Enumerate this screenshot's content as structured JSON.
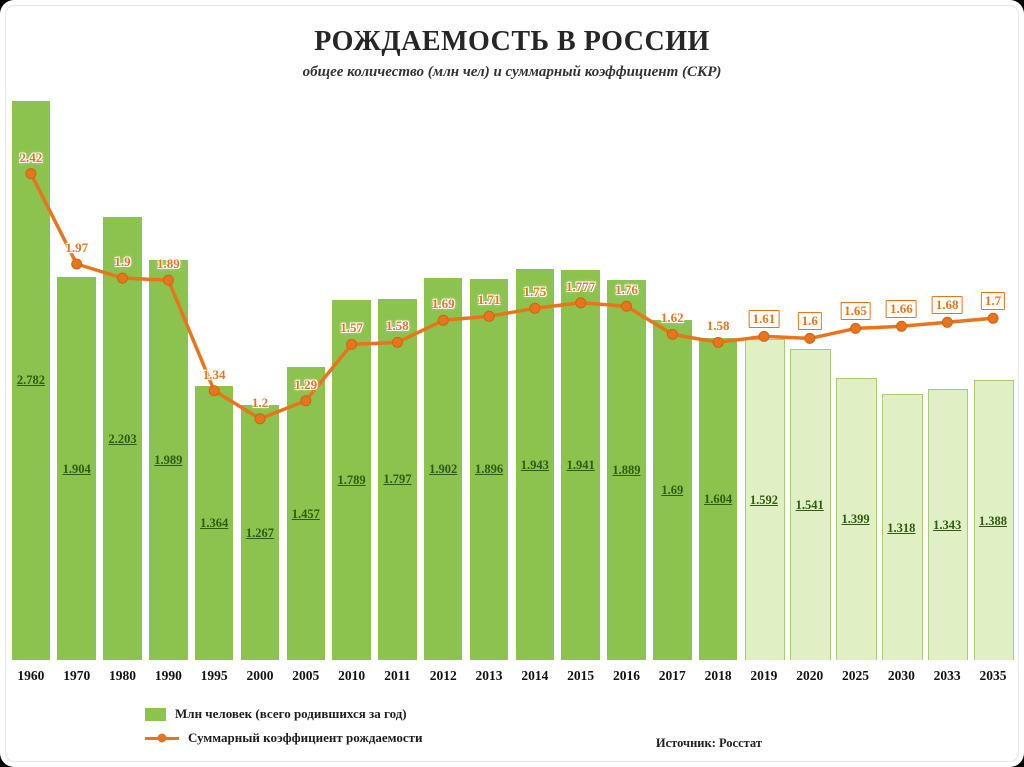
{
  "colors": {
    "bar_fill": "#8cc24e",
    "bar_forecast_fill": "#e0f0c4",
    "bar_forecast_border": "#a4cd74",
    "bar_value_label": "#2e5c10",
    "line": "#e8751d",
    "point_label": "#e8751d",
    "title_text": "#262626",
    "year_label": "#111111"
  },
  "chart_data": {
    "type": "bar+line",
    "title": "РОЖДАЕМОСТЬ В РОССИИ",
    "subtitle": "общее количество (млн чел) и суммарный коэффициент (СКР)",
    "source": "Источник: Росстат",
    "categories": [
      "1960",
      "1970",
      "1980",
      "1990",
      "1995",
      "2000",
      "2005",
      "2010",
      "2011",
      "2012",
      "2013",
      "2014",
      "2015",
      "2016",
      "2017",
      "2018",
      "2019",
      "2020",
      "2025",
      "2030",
      "2033",
      "2035"
    ],
    "series": [
      {
        "name": "Млн человек (всего родившихся за год)",
        "type": "bar",
        "values": [
          2.782,
          1.904,
          2.203,
          1.989,
          1.364,
          1.267,
          1.457,
          1.789,
          1.797,
          1.902,
          1.896,
          1.943,
          1.941,
          1.889,
          1.69,
          1.604,
          1.592,
          1.541,
          1.399,
          1.318,
          1.343,
          1.388
        ]
      },
      {
        "name": "Суммарный коэффициент рождаемости",
        "type": "line",
        "values": [
          2.42,
          1.97,
          1.9,
          1.89,
          1.34,
          1.2,
          1.29,
          1.57,
          1.58,
          1.69,
          1.71,
          1.75,
          1.777,
          1.76,
          1.62,
          1.58,
          1.61,
          1.6,
          1.65,
          1.66,
          1.68,
          1.7
        ]
      }
    ],
    "forecast_from_index": 16,
    "forecast_style": "lighter bars, boxed line labels",
    "ylim": [
      0,
      2.85
    ],
    "grid": false,
    "legend_position": "bottom-left",
    "xlabel": "",
    "ylabel": ""
  }
}
